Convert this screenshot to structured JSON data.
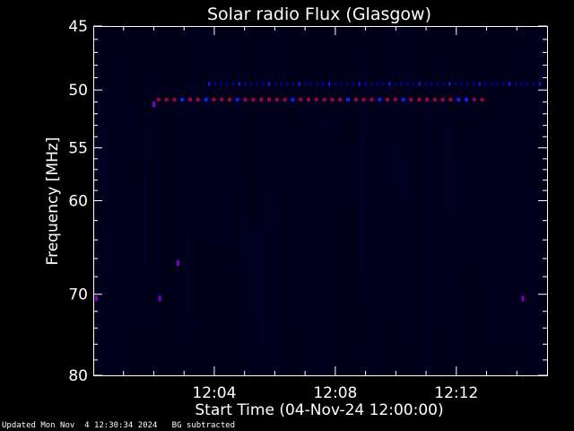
{
  "chart_data": {
    "type": "heatmap",
    "title": "Solar radio Flux (Glasgow)",
    "xlabel": "Start Time (04-Nov-24 12:00:00)",
    "ylabel": "Frequency [MHz]",
    "x_unit": "minutes after 12:00:00",
    "xlim": [
      0,
      15.0
    ],
    "ylim": [
      45,
      80
    ],
    "y_scale": "log",
    "y_direction": "increasing downward",
    "x_ticks": [
      {
        "value": 4,
        "label": "12:04"
      },
      {
        "value": 8,
        "label": "12:08"
      },
      {
        "value": 12,
        "label": "12:12"
      }
    ],
    "y_ticks": [
      {
        "value": 45,
        "label": "45"
      },
      {
        "value": 50,
        "label": "50"
      },
      {
        "value": 55,
        "label": "55"
      },
      {
        "value": 60,
        "label": "60"
      },
      {
        "value": 70,
        "label": "70"
      },
      {
        "value": 80,
        "label": "80"
      }
    ],
    "grid": false,
    "colors": {
      "background": "#00001a",
      "interference_red": "#a0003c",
      "interference_blue": "#1a1aff",
      "faint_blue": "#0000a0",
      "purple": "#8000c0"
    },
    "interference_lines": [
      {
        "frequency": 50.8,
        "x_start": 2.1,
        "x_end": 12.9,
        "color": "red-blue mix"
      },
      {
        "frequency": 49.5,
        "x_start": 3.8,
        "x_end": 14.9,
        "color": "faint blue"
      }
    ],
    "spots": [
      {
        "x": 0.1,
        "y": 70.5
      },
      {
        "x": 2.2,
        "y": 70.5
      },
      {
        "x": 14.2,
        "y": 70.5
      },
      {
        "x": 2.8,
        "y": 66.5
      },
      {
        "x": 2.0,
        "y": 51.2
      }
    ]
  },
  "footer": {
    "updated": "Updated Mon Nov  4 12:30:34 2024",
    "note": "BG subtracted"
  }
}
